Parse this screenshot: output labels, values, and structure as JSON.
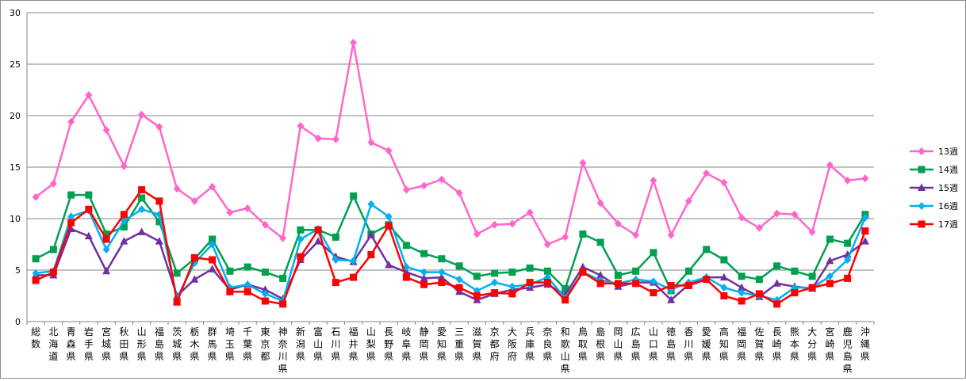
{
  "chart_data": {
    "type": "line",
    "title": "",
    "xlabel": "",
    "ylabel": "",
    "ylim": [
      0,
      30
    ],
    "yticks": [
      0,
      5,
      10,
      15,
      20,
      25,
      30
    ],
    "grid": "horizontal",
    "legend_position": "right",
    "categories": [
      "総数",
      "北海道",
      "青森県",
      "岩手県",
      "宮城県",
      "秋田県",
      "山形県",
      "福島県",
      "茨城県",
      "栃木県",
      "群馬県",
      "埼玉県",
      "千葉県",
      "東京都",
      "神奈川県",
      "新潟県",
      "富山県",
      "石川県",
      "福井県",
      "山梨県",
      "長野県",
      "岐阜県",
      "静岡県",
      "愛知県",
      "三重県",
      "滋賀県",
      "京都府",
      "大阪府",
      "兵庫県",
      "奈良県",
      "和歌山県",
      "鳥取県",
      "島根県",
      "岡山県",
      "広島県",
      "山口県",
      "徳島県",
      "香川県",
      "愛媛県",
      "高知県",
      "福岡県",
      "佐賀県",
      "長崎県",
      "熊本県",
      "大分県",
      "宮崎県",
      "鹿児島県",
      "沖縄県"
    ],
    "series": [
      {
        "name": "13週",
        "color": "#ff66cc",
        "marker": "diamond",
        "values": [
          12.1,
          13.4,
          19.4,
          22.0,
          18.6,
          15.1,
          20.1,
          18.9,
          12.9,
          11.7,
          13.1,
          10.6,
          11.0,
          9.4,
          8.1,
          19.0,
          17.8,
          17.7,
          27.1,
          17.4,
          16.6,
          12.8,
          13.2,
          13.8,
          12.5,
          8.5,
          9.4,
          9.5,
          10.6,
          7.5,
          8.2,
          15.4,
          11.5,
          9.5,
          8.4,
          13.7,
          8.4,
          11.7,
          14.4,
          13.5,
          10.1,
          9.1,
          10.5,
          10.4,
          8.7,
          15.2,
          13.7,
          13.9
        ]
      },
      {
        "name": "14週",
        "color": "#00a050",
        "marker": "square",
        "values": [
          6.1,
          7.0,
          12.3,
          12.3,
          8.5,
          9.2,
          12.0,
          9.7,
          4.7,
          6.1,
          8.0,
          4.9,
          5.3,
          4.8,
          4.2,
          8.9,
          8.9,
          8.2,
          12.2,
          8.5,
          9.4,
          7.4,
          6.6,
          6.1,
          5.4,
          4.4,
          4.7,
          4.8,
          5.2,
          4.9,
          3.2,
          8.5,
          7.7,
          4.5,
          4.9,
          6.7,
          3.0,
          4.9,
          7.0,
          6.0,
          4.4,
          4.1,
          5.4,
          4.9,
          4.4,
          8.0,
          7.6,
          10.4
        ]
      },
      {
        "name": "15週",
        "color": "#7030a0",
        "marker": "triangle",
        "values": [
          4.5,
          4.5,
          9.0,
          8.3,
          4.9,
          7.8,
          8.7,
          7.8,
          2.5,
          4.1,
          5.1,
          3.1,
          3.6,
          3.1,
          2.2,
          6.0,
          7.8,
          6.3,
          5.8,
          8.4,
          5.5,
          4.8,
          4.2,
          4.3,
          2.9,
          2.1,
          2.7,
          3.1,
          3.3,
          3.6,
          2.6,
          5.3,
          4.5,
          3.4,
          3.8,
          3.8,
          2.1,
          3.6,
          4.3,
          4.3,
          3.3,
          2.4,
          3.7,
          3.4,
          3.2,
          5.9,
          6.5,
          7.8
        ]
      },
      {
        "name": "16週",
        "color": "#00b0f0",
        "marker": "diamond",
        "values": [
          4.7,
          4.9,
          10.2,
          10.8,
          7.0,
          9.8,
          10.9,
          10.4,
          2.3,
          5.7,
          7.5,
          3.3,
          3.6,
          2.7,
          2.0,
          8.0,
          9.0,
          6.0,
          5.9,
          11.4,
          10.2,
          5.3,
          4.8,
          4.8,
          4.1,
          3.0,
          3.8,
          3.4,
          3.6,
          4.3,
          2.3,
          4.8,
          4.0,
          3.7,
          4.1,
          3.9,
          3.1,
          3.8,
          4.3,
          3.3,
          2.8,
          2.5,
          2.1,
          3.3,
          3.3,
          4.4,
          6.0,
          10.1
        ]
      },
      {
        "name": "17週",
        "color": "#ff0000",
        "marker": "square",
        "values": [
          4.0,
          4.8,
          9.6,
          10.9,
          8.0,
          10.4,
          12.8,
          11.7,
          1.9,
          6.2,
          6.0,
          2.9,
          2.9,
          2.0,
          1.7,
          6.3,
          8.9,
          3.8,
          4.3,
          6.5,
          9.3,
          4.3,
          3.6,
          3.8,
          3.3,
          2.5,
          2.8,
          2.7,
          3.8,
          3.8,
          2.1,
          4.8,
          3.7,
          3.7,
          3.7,
          2.8,
          3.5,
          3.5,
          4.1,
          2.5,
          2.0,
          2.7,
          1.7,
          2.8,
          3.3,
          3.7,
          4.2,
          8.8
        ]
      }
    ]
  }
}
